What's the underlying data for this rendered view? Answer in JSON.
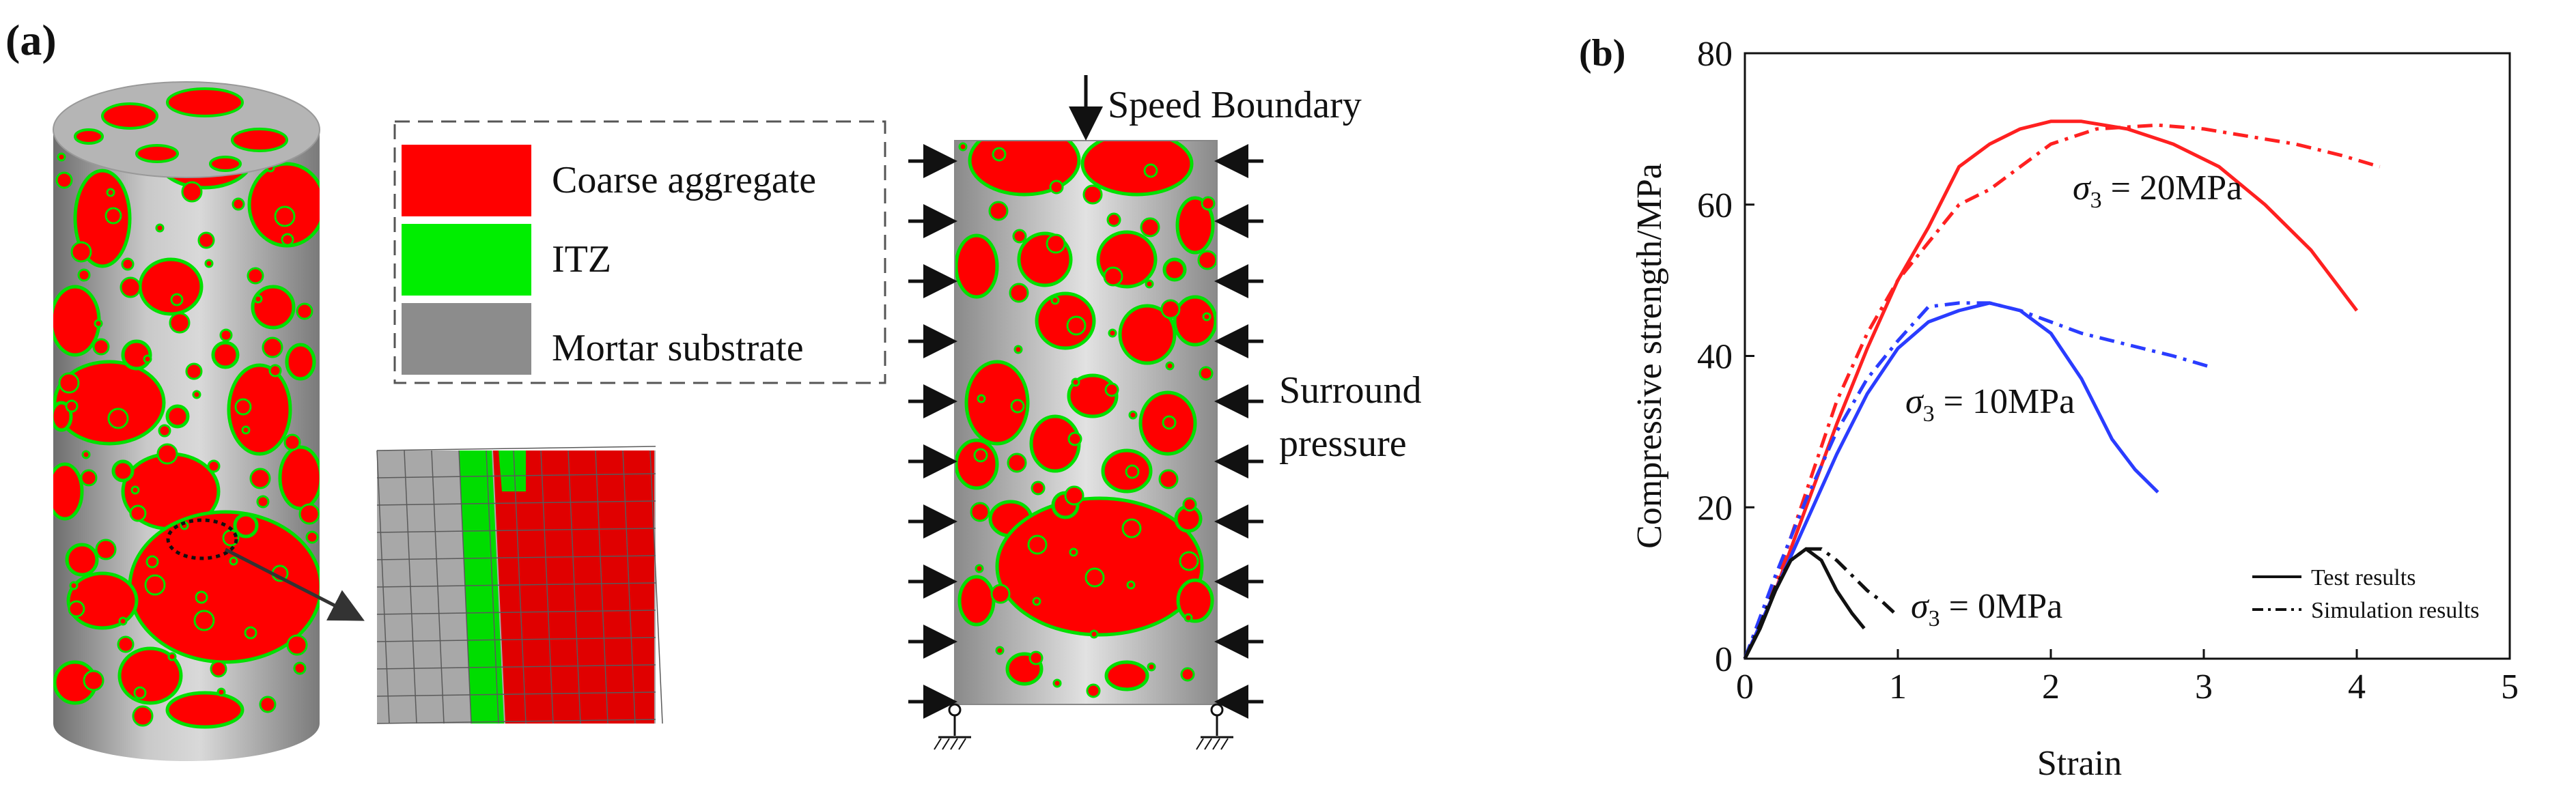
{
  "panel_a": {
    "label": "(a)",
    "legend": {
      "items": [
        {
          "label": "Coarse aggregate",
          "color": "#ff0000"
        },
        {
          "label": "ITZ",
          "color": "#00ee00"
        },
        {
          "label": "Mortar substrate",
          "color": "#8c8c8c"
        }
      ]
    },
    "boundary": {
      "top_label": "Speed Boundary",
      "side_label_line1": "Surround",
      "side_label_line2": "pressure"
    },
    "colors": {
      "aggregate": "#ff0000",
      "itz": "#00e000",
      "mortar": "#9a9a9a"
    }
  },
  "panel_b": {
    "label": "(b)",
    "annotations": [
      {
        "sigma": "σ",
        "sub": "3",
        "text": " = 20MPa"
      },
      {
        "sigma": "σ",
        "sub": "3",
        "text": " = 10MPa"
      },
      {
        "sigma": "σ",
        "sub": "3",
        "text": " = 0MPa"
      }
    ]
  },
  "chart_data": {
    "type": "line",
    "xlabel": "Strain",
    "ylabel": "Compressive strength/MPa",
    "xlim": [
      0,
      5
    ],
    "ylim": [
      0,
      80
    ],
    "xticks": [
      0,
      1,
      2,
      3,
      4,
      5
    ],
    "yticks": [
      0,
      20,
      40,
      60,
      80
    ],
    "grid": false,
    "legend": {
      "position": "bottom-right",
      "entries": [
        {
          "label": "Test results",
          "style": "solid"
        },
        {
          "label": "Simulation results",
          "style": "dashdot"
        }
      ]
    },
    "series": [
      {
        "group": "σ3 = 20MPa",
        "kind": "test",
        "color": "#ff2020",
        "style": "solid",
        "x": [
          0,
          0.2,
          0.4,
          0.6,
          0.8,
          1.0,
          1.2,
          1.4,
          1.6,
          1.8,
          2.0,
          2.2,
          2.5,
          2.8,
          3.1,
          3.4,
          3.7,
          4.0
        ],
        "y": [
          0,
          9,
          20,
          31,
          41,
          50,
          57,
          65,
          68,
          70,
          71,
          71,
          70,
          68,
          65,
          60,
          54,
          46
        ]
      },
      {
        "group": "σ3 = 20MPa",
        "kind": "simulation",
        "color": "#ff2020",
        "style": "dashdot",
        "x": [
          0,
          0.2,
          0.4,
          0.6,
          0.8,
          1.0,
          1.2,
          1.4,
          1.6,
          1.8,
          2.0,
          2.3,
          2.7,
          3.0,
          3.3,
          3.6,
          3.9,
          4.15
        ],
        "y": [
          0,
          10,
          22,
          34,
          43,
          50,
          55,
          60,
          62,
          65,
          68,
          70,
          70.5,
          70,
          69,
          68,
          66.5,
          65
        ]
      },
      {
        "group": "σ3 = 10MPa",
        "kind": "test",
        "color": "#2a3cff",
        "style": "solid",
        "x": [
          0,
          0.2,
          0.4,
          0.6,
          0.8,
          1.0,
          1.2,
          1.4,
          1.6,
          1.8,
          2.0,
          2.2,
          2.4,
          2.55,
          2.7
        ],
        "y": [
          0,
          9,
          18,
          27,
          35,
          41,
          44.5,
          46,
          47,
          46,
          43,
          37,
          29,
          25,
          22
        ]
      },
      {
        "group": "σ3 = 10MPa",
        "kind": "simulation",
        "color": "#2a3cff",
        "style": "dashdot",
        "x": [
          0,
          0.2,
          0.4,
          0.6,
          0.8,
          1.0,
          1.2,
          1.4,
          1.6,
          1.8,
          2.0,
          2.2,
          2.4,
          2.6,
          2.8,
          3.05
        ],
        "y": [
          0,
          11,
          21,
          30,
          37,
          42,
          46.5,
          47,
          47,
          46,
          44.5,
          43,
          42,
          41,
          40,
          38.5
        ]
      },
      {
        "group": "σ3 = 0MPa",
        "kind": "test",
        "color": "#111111",
        "style": "solid",
        "x": [
          0,
          0.1,
          0.2,
          0.3,
          0.4,
          0.5,
          0.6,
          0.7,
          0.78
        ],
        "y": [
          0,
          4,
          9,
          13,
          14.5,
          13,
          9,
          6,
          4
        ]
      },
      {
        "group": "σ3 = 0MPa",
        "kind": "simulation",
        "color": "#111111",
        "style": "dashdot",
        "x": [
          0,
          0.1,
          0.2,
          0.3,
          0.4,
          0.5,
          0.6,
          0.7,
          0.8,
          0.9,
          0.98
        ],
        "y": [
          0,
          4.5,
          9.5,
          13,
          14.5,
          14.5,
          13,
          11,
          9,
          7.5,
          6
        ]
      }
    ]
  }
}
